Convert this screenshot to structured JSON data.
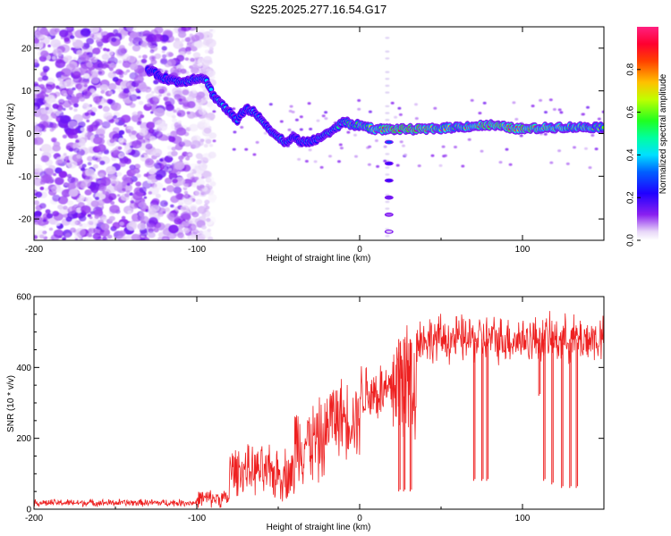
{
  "title": "S225.2025.277.16.54.G17",
  "chart_data": [
    {
      "type": "heatmap",
      "name": "spectrogram",
      "xlabel": "Height of straight line (km)",
      "ylabel": "Frequency (Hz)",
      "xlim": [
        -200,
        150
      ],
      "ylim": [
        -25,
        25
      ],
      "xticks": [
        -200,
        -100,
        0,
        100
      ],
      "yticks": [
        -20,
        -10,
        0,
        10,
        20
      ],
      "xtick_labels": [
        "-200",
        "-100",
        "0",
        "100"
      ],
      "ytick_labels": [
        "-20",
        "-10",
        "0",
        "10",
        "20"
      ],
      "colorbar": {
        "label": "Normalized spectral amplitude",
        "range": [
          0,
          1
        ],
        "ticks": [
          0.0,
          0.2,
          0.4,
          0.6,
          0.8
        ],
        "tick_labels": [
          "0.0",
          "0.2",
          "0.4",
          "0.6",
          "0.8"
        ],
        "colors": [
          "#e8ddf8",
          "#7b18f0",
          "#0000ff",
          "#00e0ff",
          "#00ff40",
          "#f0ff00",
          "#ff9000",
          "#ff0000",
          "#ff0090"
        ]
      },
      "ridge": {
        "x": [
          -130,
          -120,
          -110,
          -100,
          -95,
          -90,
          -85,
          -80,
          -75,
          -70,
          -65,
          -60,
          -55,
          -50,
          -45,
          -40,
          -35,
          -30,
          -25,
          -20,
          -15,
          -10,
          -5,
          0,
          10,
          20,
          30,
          40,
          60,
          80,
          100,
          120,
          150
        ],
        "freq": [
          15,
          13,
          12,
          13,
          13,
          9,
          7,
          5,
          3,
          6,
          5,
          3,
          1,
          -1,
          -2,
          -1,
          -2,
          -2,
          -1,
          0,
          1,
          3,
          2,
          2,
          1,
          1,
          1,
          1,
          1.5,
          2,
          1,
          1.5,
          1.5
        ],
        "amplitude": [
          0.25,
          0.3,
          0.35,
          0.4,
          0.45,
          0.35,
          0.4,
          0.35,
          0.35,
          0.3,
          0.4,
          0.4,
          0.35,
          0.4,
          0.4,
          0.3,
          0.35,
          0.35,
          0.4,
          0.45,
          0.45,
          0.5,
          0.55,
          0.6,
          0.7,
          0.85,
          0.9,
          0.85,
          0.65,
          0.85,
          0.9,
          0.7,
          0.6
        ]
      },
      "mirror_column": {
        "x": 17,
        "freq": [
          -2,
          -7,
          -11,
          -15,
          -19,
          -23
        ],
        "amplitude": [
          0.3,
          0.2,
          0.2,
          0.15,
          0.1,
          0.05
        ]
      }
    },
    {
      "type": "line",
      "name": "snr",
      "xlabel": "Height of straight line (km)",
      "ylabel": "SNR (10 * v/v)",
      "xlim": [
        -200,
        150
      ],
      "ylim": [
        0,
        600
      ],
      "xticks": [
        -200,
        -100,
        0,
        100
      ],
      "yticks": [
        0,
        200,
        400,
        600
      ],
      "xtick_labels": [
        "-200",
        "-100",
        "0",
        "100"
      ],
      "ytick_labels": [
        "0",
        "200",
        "400",
        "600"
      ],
      "color": "#ee2020",
      "segments": [
        {
          "x_from": -200,
          "x_to": -100,
          "mean": 18,
          "spread": 12
        },
        {
          "x_from": -100,
          "x_to": -80,
          "mean": 30,
          "spread": 30
        },
        {
          "x_from": -80,
          "x_to": -60,
          "mean": 110,
          "spread": 80
        },
        {
          "x_from": -60,
          "x_to": -40,
          "mean": 100,
          "spread": 90
        },
        {
          "x_from": -40,
          "x_to": -20,
          "mean": 190,
          "spread": 140
        },
        {
          "x_from": -20,
          "x_to": 0,
          "mean": 260,
          "spread": 130
        },
        {
          "x_from": 0,
          "x_to": 20,
          "mean": 330,
          "spread": 110
        },
        {
          "x_from": 20,
          "x_to": 35,
          "mean": 360,
          "spread": 230
        },
        {
          "x_from": 35,
          "x_to": 150,
          "mean": 480,
          "spread": 80
        }
      ],
      "dropouts": [
        {
          "x": 24,
          "value": 50
        },
        {
          "x": 27,
          "value": 50
        },
        {
          "x": 31,
          "value": 50
        },
        {
          "x": 70,
          "value": 80
        },
        {
          "x": 75,
          "value": 80
        },
        {
          "x": 78,
          "value": 80
        },
        {
          "x": 110,
          "value": 320
        },
        {
          "x": 113,
          "value": 80
        },
        {
          "x": 118,
          "value": 70
        },
        {
          "x": 124,
          "value": 60
        },
        {
          "x": 129,
          "value": 60
        },
        {
          "x": 133,
          "value": 60
        }
      ]
    }
  ]
}
